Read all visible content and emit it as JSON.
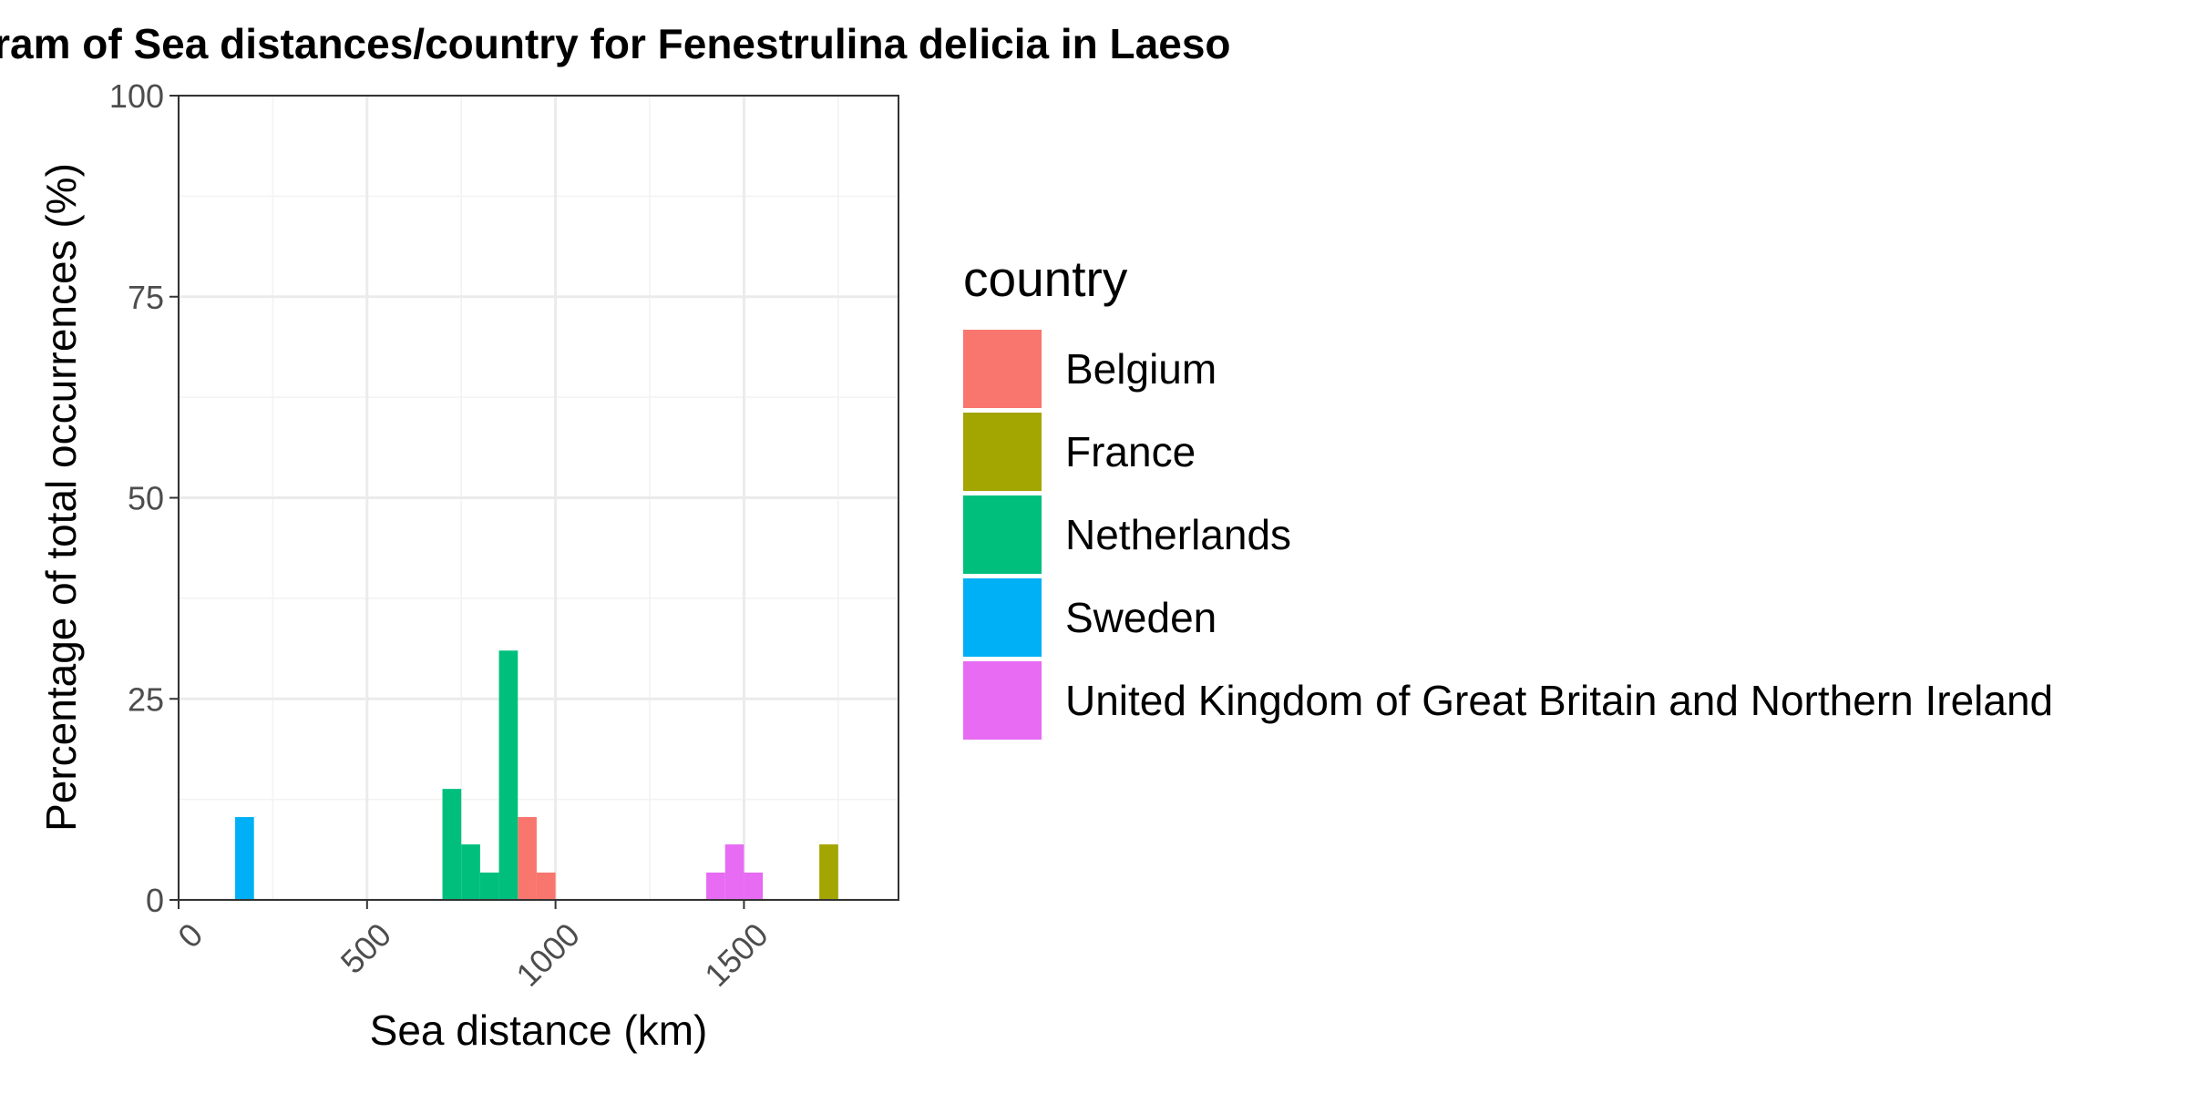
{
  "chart_data": {
    "type": "bar",
    "title": "Histogram of Sea distances/country for Fenestrulina delicia in Laeso",
    "xlabel": "Sea distance (km)",
    "ylabel": "Percentage of total occurrences (%)",
    "xlim": [
      0,
      1910
    ],
    "ylim": [
      0,
      100
    ],
    "x_ticks": [
      0,
      500,
      1000,
      1500
    ],
    "x_tick_labels": [
      "0",
      "500",
      "1000",
      "1500"
    ],
    "y_ticks": [
      0,
      25,
      50,
      75,
      100
    ],
    "y_tick_labels": [
      "0",
      "25",
      "50",
      "75",
      "100"
    ],
    "bin_width": 50,
    "grid": true,
    "legend": {
      "title": "country",
      "position": "right"
    },
    "series": [
      {
        "name": "Belgium",
        "color": "#F8766D",
        "bins": [
          {
            "x0": 900,
            "x1": 950,
            "value": 10.3
          },
          {
            "x0": 950,
            "x1": 1000,
            "value": 3.4
          }
        ]
      },
      {
        "name": "France",
        "color": "#A3A500",
        "bins": [
          {
            "x0": 1700,
            "x1": 1750,
            "value": 6.9
          }
        ]
      },
      {
        "name": "Netherlands",
        "color": "#00BF7D",
        "bins": [
          {
            "x0": 700,
            "x1": 750,
            "value": 13.8
          },
          {
            "x0": 750,
            "x1": 800,
            "value": 6.9
          },
          {
            "x0": 800,
            "x1": 850,
            "value": 3.4
          },
          {
            "x0": 850,
            "x1": 900,
            "value": 31.0
          }
        ]
      },
      {
        "name": "Sweden",
        "color": "#00B0F6",
        "bins": [
          {
            "x0": 150,
            "x1": 200,
            "value": 10.3
          }
        ]
      },
      {
        "name": "United Kingdom of Great Britain and Northern Ireland",
        "color": "#E76BF3",
        "bins": [
          {
            "x0": 1400,
            "x1": 1450,
            "value": 3.4
          },
          {
            "x0": 1450,
            "x1": 1500,
            "value": 6.9
          },
          {
            "x0": 1500,
            "x1": 1550,
            "value": 3.4
          }
        ]
      }
    ]
  }
}
